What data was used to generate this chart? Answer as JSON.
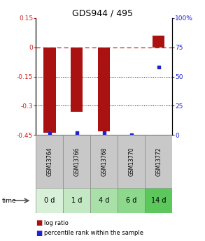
{
  "title": "GDS944 / 495",
  "samples": [
    "GSM13764",
    "GSM13766",
    "GSM13768",
    "GSM13770",
    "GSM13772"
  ],
  "time_labels": [
    "0 d",
    "1 d",
    "4 d",
    "6 d",
    "14 d"
  ],
  "log_ratio": [
    -0.44,
    -0.33,
    -0.43,
    0.0,
    0.06
  ],
  "percentile": [
    1.5,
    2.0,
    2.0,
    0.0,
    58.0
  ],
  "ylim_left": [
    -0.45,
    0.15
  ],
  "ylim_right": [
    0,
    100
  ],
  "bar_color": "#aa1111",
  "point_color": "#2222cc",
  "dashed_line_color": "#cc2222",
  "bar_width": 0.45,
  "background_color": "#ffffff",
  "gray_section_color": "#c8c8c8",
  "green_section_colors": [
    "#d8f0d8",
    "#c4e8c4",
    "#a8e0a8",
    "#8cd88c",
    "#5cc85c"
  ],
  "legend_lr_color": "#aa1111",
  "legend_pr_color": "#2222cc",
  "title_fontsize": 9,
  "tick_fontsize": 6.5,
  "gsm_fontsize": 5.5,
  "time_fontsize": 7
}
